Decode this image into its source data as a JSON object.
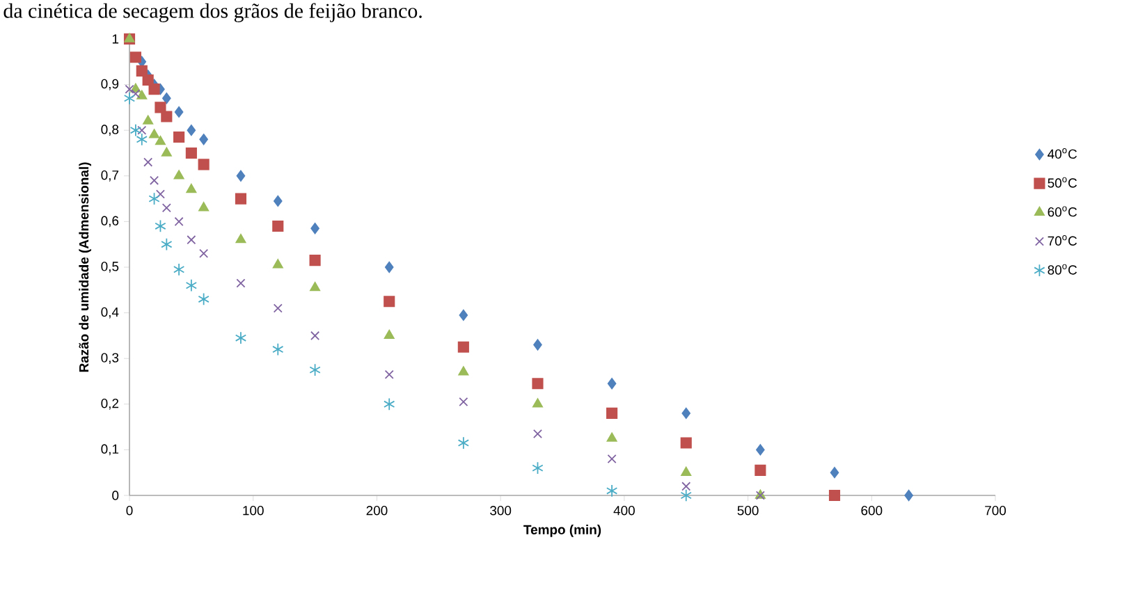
{
  "chart_data": {
    "type": "scatter",
    "annotations": [
      "da cinética de secagem dos grãos de feijão branco."
    ],
    "xlabel": "Tempo (min)",
    "ylabel": "Razão de umidade (Admensional)",
    "xlim": [
      0,
      700
    ],
    "xticks": [
      0,
      100,
      200,
      300,
      400,
      500,
      600,
      700
    ],
    "ylim": [
      0,
      1
    ],
    "yticks": [
      0,
      {
        "value": 0.1,
        "label": "0,1"
      },
      {
        "value": 0.2,
        "label": "0,2"
      },
      {
        "value": 0.3,
        "label": "0,3"
      },
      {
        "value": 0.4,
        "label": "0,4"
      },
      {
        "value": 0.5,
        "label": "0,5"
      },
      {
        "value": 0.6,
        "label": "0,6"
      },
      {
        "value": 0.7,
        "label": "0,7"
      },
      {
        "value": 0.8,
        "label": "0,8"
      },
      {
        "value": 0.9,
        "label": "0,9"
      },
      1
    ],
    "legend": "right",
    "grid": false,
    "series": [
      {
        "name": "40$^{o}$C",
        "color": "#4f81bd",
        "x": [
          10,
          15,
          20,
          25,
          30,
          40,
          50,
          60,
          90,
          120,
          150,
          210,
          270,
          330,
          390,
          450,
          510,
          570,
          630
        ],
        "values": [
          0.95,
          0.92,
          0.9,
          0.89,
          0.87,
          0.84,
          0.8,
          0.78,
          0.7,
          0.645,
          0.585,
          0.5,
          0.395,
          0.33,
          0.245,
          0.18,
          0.1,
          0.05,
          0
        ]
      },
      {
        "name": "50$^{o}$C",
        "color": "#c0504d",
        "x": [
          0,
          5,
          10,
          15,
          20,
          25,
          30,
          40,
          50,
          60,
          90,
          120,
          150,
          210,
          270,
          330,
          390,
          450,
          510,
          570
        ],
        "values": [
          1,
          0.96,
          0.93,
          0.91,
          0.89,
          0.85,
          0.83,
          0.785,
          0.75,
          0.725,
          0.65,
          0.59,
          0.515,
          0.425,
          0.325,
          0.245,
          0.18,
          0.115,
          0.055,
          0
        ]
      },
      {
        "name": "60$^{o}$C",
        "color": "#9bbb59",
        "x": [
          0,
          5,
          10,
          15,
          20,
          25,
          30,
          40,
          50,
          60,
          90,
          120,
          150,
          210,
          270,
          330,
          390,
          450,
          510
        ],
        "values": [
          1,
          0.89,
          0.875,
          0.82,
          0.79,
          0.775,
          0.75,
          0.7,
          0.67,
          0.63,
          0.56,
          0.505,
          0.455,
          0.35,
          0.27,
          0.2,
          0.125,
          0.05,
          0
        ]
      },
      {
        "name": "70$^{o}$C",
        "color": "#8064a2",
        "x": [
          0,
          5,
          10,
          15,
          20,
          25,
          30,
          40,
          50,
          60,
          90,
          120,
          150,
          210,
          270,
          330,
          390,
          450,
          510
        ],
        "values": [
          0.89,
          0.88,
          0.8,
          0.73,
          0.69,
          0.66,
          0.63,
          0.6,
          0.56,
          0.53,
          0.465,
          0.41,
          0.35,
          0.265,
          0.205,
          0.135,
          0.08,
          0.02,
          0
        ]
      },
      {
        "name": "80$^{o}$C",
        "color": "#4bacc6",
        "x": [
          0,
          5,
          10,
          20,
          25,
          30,
          40,
          50,
          60,
          90,
          120,
          150,
          210,
          270,
          330,
          390,
          450
        ],
        "values": [
          0.87,
          0.8,
          0.78,
          0.65,
          0.59,
          0.55,
          0.495,
          0.46,
          0.43,
          0.345,
          0.32,
          0.275,
          0.2,
          0.115,
          0.06,
          0.01,
          0
        ]
      }
    ]
  }
}
